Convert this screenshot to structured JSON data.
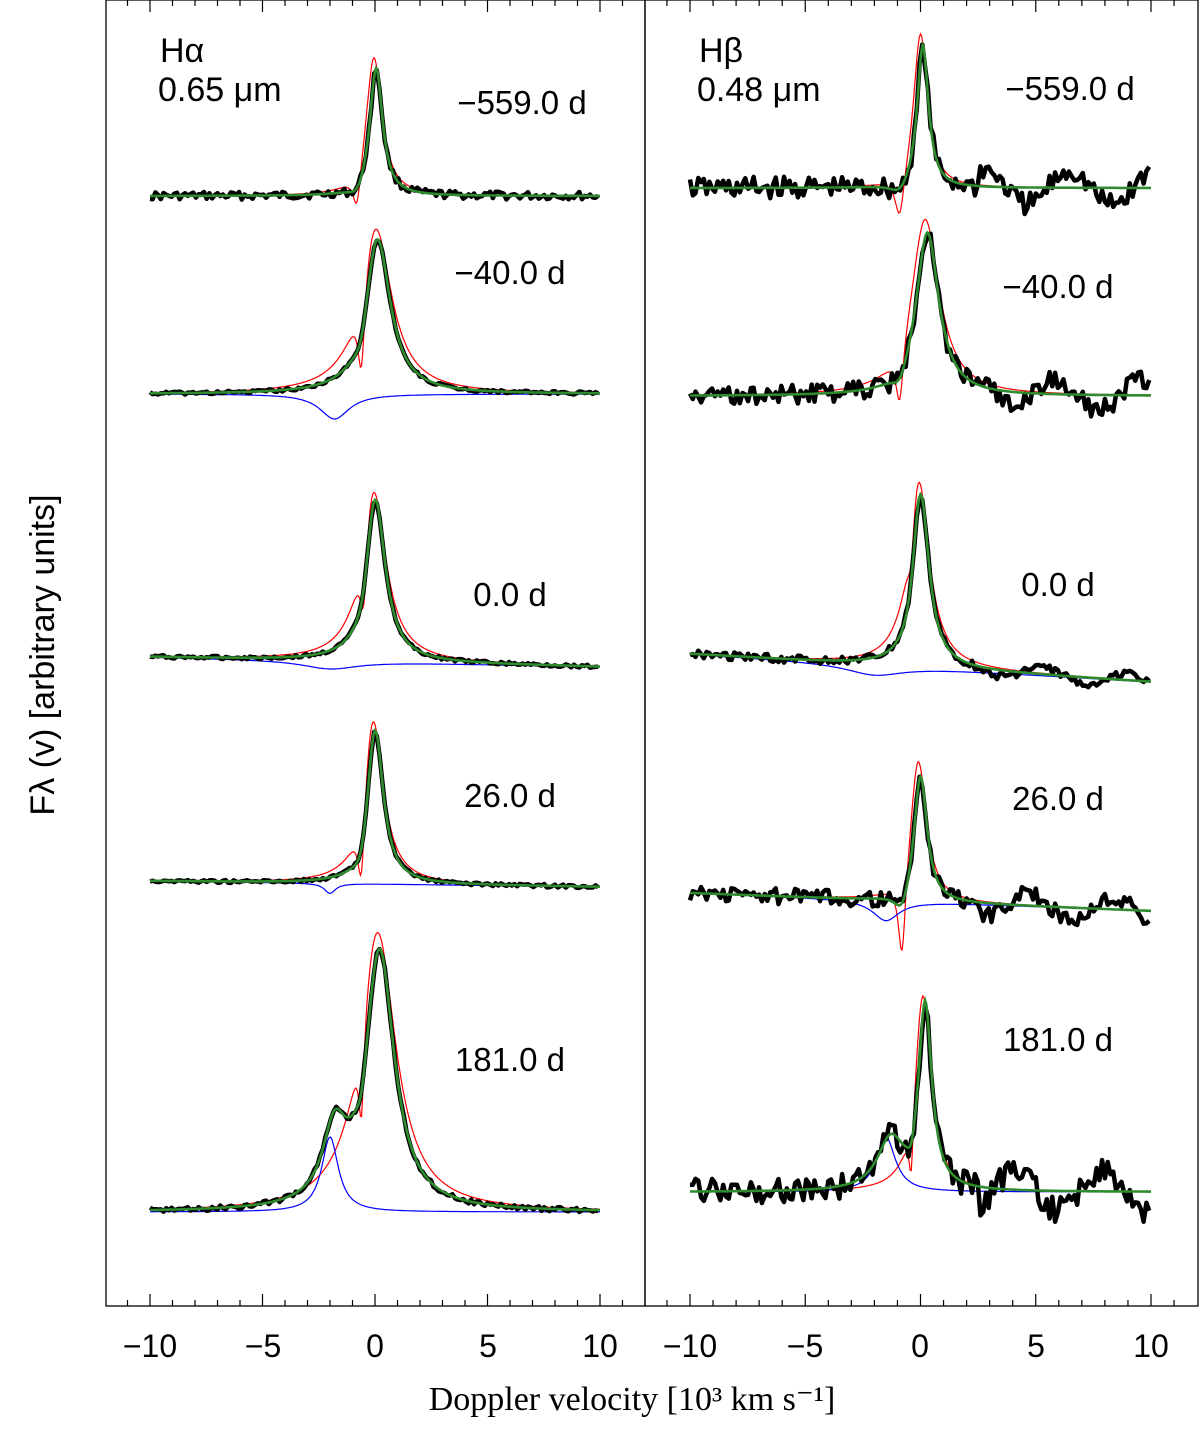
{
  "chart_data": {
    "type": "line",
    "xlabel": "Doppler velocity [10³ km s⁻¹]",
    "ylabel": "Fλ (v) [arbitrary units]",
    "xlim": [
      -11,
      11
    ],
    "xticks": [
      -10,
      -5,
      0,
      5,
      10
    ],
    "xtick_labels": [
      "−10",
      "−5",
      "0",
      "5",
      "10"
    ],
    "series_colors": {
      "observed": "#000000",
      "fit": "#2e8b2e",
      "component_red": "#ff0000",
      "component_blue": "#0000ff"
    },
    "panels": [
      {
        "line": "Hα",
        "wavelength": "0.65 μm",
        "epochs": [
          {
            "label": "−559.0 d",
            "peak_velocity": 0.1,
            "absorption_velocity": -0.8
          },
          {
            "label": "−40.0 d",
            "peak_velocity": 0.1,
            "absorption_velocity": -0.6,
            "blue_component_velocity": -1.8
          },
          {
            "label": "0.0 d",
            "peak_velocity": 0.0,
            "absorption_velocity": -0.5
          },
          {
            "label": "26.0 d",
            "peak_velocity": 0.0,
            "absorption_velocity": -0.6,
            "blue_component_velocity": -2.0
          },
          {
            "label": "181.0 d",
            "peak_velocity": 0.2,
            "absorption_velocity": -0.6,
            "blue_component_velocity": -2.0
          }
        ]
      },
      {
        "line": "Hβ",
        "wavelength": "0.48 μm",
        "epochs": [
          {
            "label": "−559.0 d",
            "peak_velocity": 0.1,
            "absorption_velocity": -0.9
          },
          {
            "label": "−40.0 d",
            "peak_velocity": 0.3,
            "absorption_velocity": -0.9
          },
          {
            "label": "0.0 d",
            "peak_velocity": 0.0,
            "absorption_velocity": -0.4
          },
          {
            "label": "26.0 d",
            "peak_velocity": 0.0,
            "absorption_velocity": -0.8,
            "blue_component_velocity": -1.5
          },
          {
            "label": "181.0 d",
            "peak_velocity": 0.2,
            "absorption_velocity": -0.4,
            "blue_component_velocity": -1.5
          }
        ]
      }
    ]
  }
}
